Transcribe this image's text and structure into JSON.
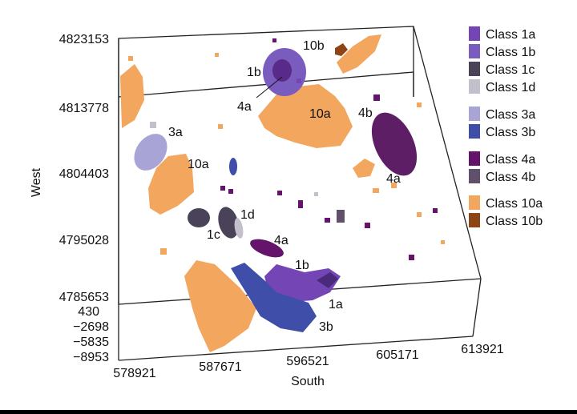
{
  "chart_data": {
    "type": "scatter",
    "xlabel": "South",
    "ylabel": "West",
    "x_ticks": [
      "578921",
      "587671",
      "596521",
      "605171",
      "613921"
    ],
    "y_ticks": [
      "4823153",
      "4813778",
      "4804403",
      "4795028",
      "4785653"
    ],
    "z_ticks": [
      "430",
      "−2698",
      "−5835",
      "−8953"
    ],
    "xlim": [
      578921,
      613921
    ],
    "ylim": [
      4785653,
      4823153
    ],
    "zlim": [
      -8953,
      430
    ],
    "legend_position": "right",
    "legend": [
      {
        "label": "Class 1a",
        "color": "#7446b5"
      },
      {
        "label": "Class 1b",
        "color": "#7a5cbf"
      },
      {
        "label": "Class 1c",
        "color": "#4a4258"
      },
      {
        "label": "Class 1d",
        "color": "#c4c0cb"
      },
      {
        "label": "Class 3a",
        "color": "#a8a5d6"
      },
      {
        "label": "Class 3b",
        "color": "#3f4ea8"
      },
      {
        "label": "Class 4a",
        "color": "#64146a"
      },
      {
        "label": "Class 4b",
        "color": "#60506a"
      },
      {
        "label": "Class 10a",
        "color": "#f2a65e"
      },
      {
        "label": "Class 10b",
        "color": "#8e4515"
      }
    ],
    "annotations": [
      "10b",
      "1b",
      "4a",
      "10a",
      "4b",
      "3a",
      "10a",
      "4a",
      "1d",
      "1c",
      "4a",
      "1b",
      "1a",
      "3b"
    ]
  }
}
